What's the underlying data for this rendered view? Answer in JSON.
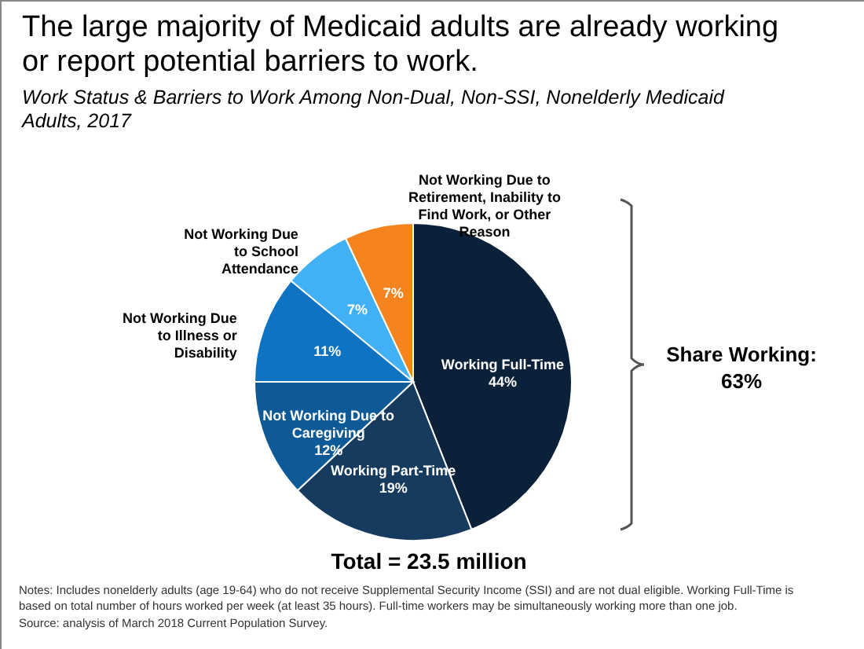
{
  "chart_data": {
    "type": "pie",
    "title": "The large majority of Medicaid adults are already working or report potential barriers to work.",
    "subtitle": "Work Status & Barriers to Work Among Non-Dual, Non-SSI, Nonelderly Medicaid Adults, 2017",
    "categories": [
      "Working Full-Time",
      "Working Part-Time",
      "Not Working Due to Caregiving",
      "Not Working Due to Illness or Disability",
      "Not Working Due to School Attendance",
      "Not Working Due to Retirement, Inability to Find Work, or Other Reason"
    ],
    "values": [
      44,
      19,
      12,
      11,
      7,
      7
    ],
    "colors": [
      "#0b2039",
      "#163b5e",
      "#0e5a96",
      "#0f73c4",
      "#42b0f5",
      "#f5841f"
    ],
    "value_labels": [
      "44%",
      "19%",
      "12%",
      "11%",
      "7%",
      "7%"
    ],
    "annotations": [
      "Share Working: 63%",
      "Total = 23.5 million",
      "Notes: Includes nonelderly adults (age 19-64) who do not receive Supplemental Security Income (SSI) and are not dual eligible. Working Full-Time is based on total number of hours worked per week (at least 35 hours). Full-time workers may be simultaneously working more than one job.",
      "Source: analysis of March 2018 Current Population Survey."
    ]
  }
}
